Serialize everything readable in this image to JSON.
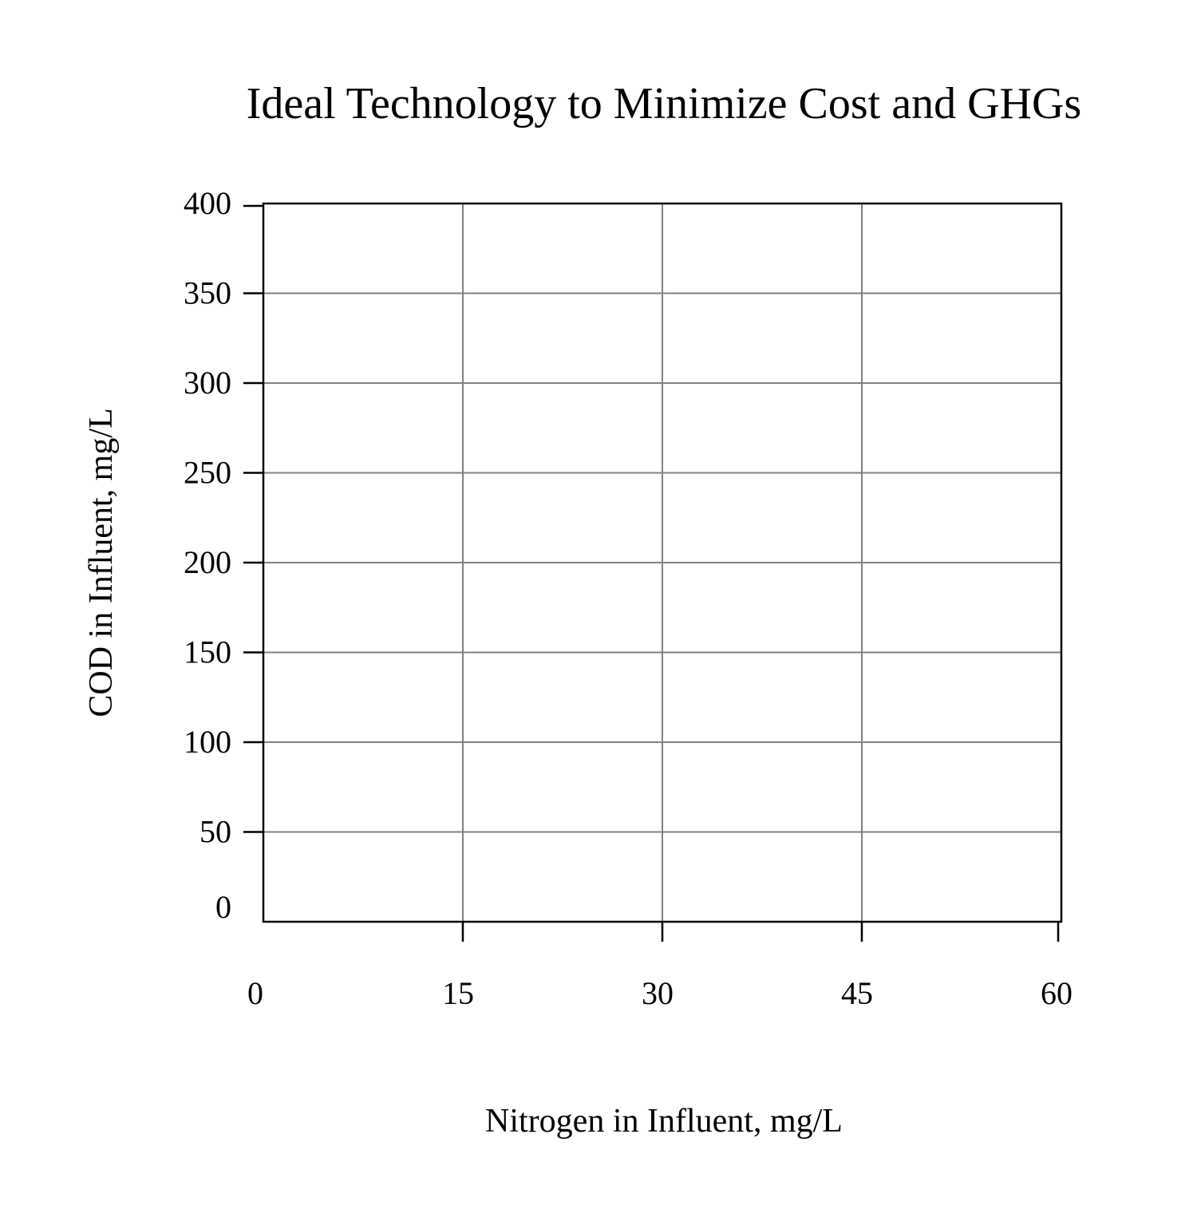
{
  "chart_data": {
    "type": "scatter",
    "title": "Ideal Technology to Minimize Cost and GHGs",
    "xlabel": "Nitrogen in Influent, mg/L",
    "ylabel": "COD in Influent, mg/L",
    "xlim": [
      0,
      60
    ],
    "ylim": [
      0,
      400
    ],
    "xticks": [
      0,
      15,
      30,
      45,
      60
    ],
    "yticks": [
      0,
      50,
      100,
      150,
      200,
      250,
      300,
      350,
      400
    ],
    "grid": true,
    "series": []
  },
  "colors": {
    "background": "#ffffff",
    "axis": "#000000",
    "grid": "#808080",
    "text": "#000000"
  }
}
